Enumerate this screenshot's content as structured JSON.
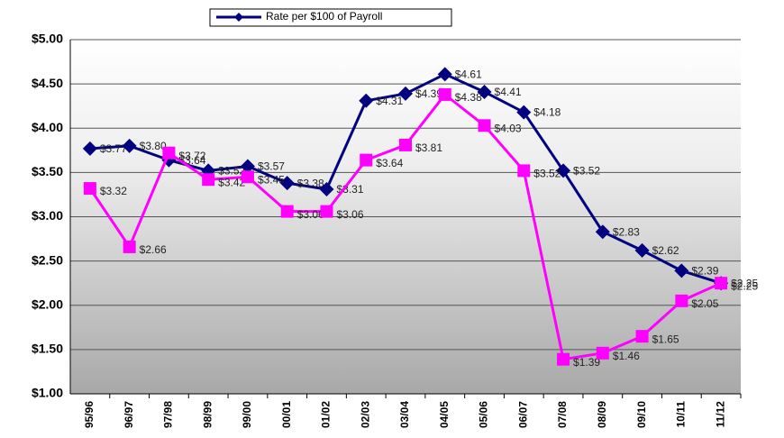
{
  "chart_data": {
    "type": "line",
    "categories": [
      "95/96",
      "96/97",
      "97/98",
      "98/99",
      "99/00",
      "00/01",
      "01/02",
      "02/03",
      "03/04",
      "04/05",
      "05/06",
      "06/07",
      "07/08",
      "08/09",
      "09/10",
      "10/11",
      "11/12"
    ],
    "series": [
      {
        "name": "Rate per $100 of Payroll",
        "color": "#000080",
        "marker": "diamond",
        "values": [
          3.77,
          3.8,
          3.64,
          3.52,
          3.57,
          3.38,
          3.31,
          4.31,
          4.39,
          4.61,
          4.41,
          4.18,
          3.52,
          2.83,
          2.62,
          2.39,
          2.25
        ],
        "value_labels": [
          "$3.77",
          "$3.80",
          "$3.64",
          "$3.52",
          "$3.57",
          "$3.38",
          "$3.31",
          "$4.31",
          "$4.39",
          "$4.61",
          "$4.41",
          "$4.18",
          "$3.52",
          "$2.83",
          "$2.62",
          "$2.39",
          "$2.25"
        ]
      },
      {
        "color": "#ff00ff",
        "marker": "square",
        "values": [
          3.32,
          2.66,
          3.72,
          3.42,
          3.45,
          3.06,
          3.06,
          3.64,
          3.81,
          4.38,
          4.03,
          3.52,
          1.39,
          1.46,
          1.65,
          2.05,
          2.25
        ],
        "value_labels": [
          "$3.32",
          "$2.66",
          "$3.72",
          "$3.42",
          "$3.45",
          "$3.06",
          "$3.06",
          "$3.64",
          "$3.81",
          "$4.38",
          "$4.03",
          "$3.52",
          "$1.39",
          "$1.46",
          "$1.65",
          "$2.05",
          "$2.25"
        ]
      }
    ],
    "ylim": [
      1,
      5
    ],
    "yticks": [
      {
        "value": 1,
        "label": "$1.00"
      },
      {
        "value": 1.5,
        "label": "$1.50"
      },
      {
        "value": 2,
        "label": "$2.00"
      },
      {
        "value": 2.5,
        "label": "$2.50"
      },
      {
        "value": 3,
        "label": "$3.00"
      },
      {
        "value": 3.5,
        "label": "$3.50"
      },
      {
        "value": 4,
        "label": "$4.00"
      },
      {
        "value": 4.5,
        "label": "$4.50"
      },
      {
        "value": 5,
        "label": "$5.00"
      }
    ],
    "grid": true,
    "legend": "top"
  }
}
